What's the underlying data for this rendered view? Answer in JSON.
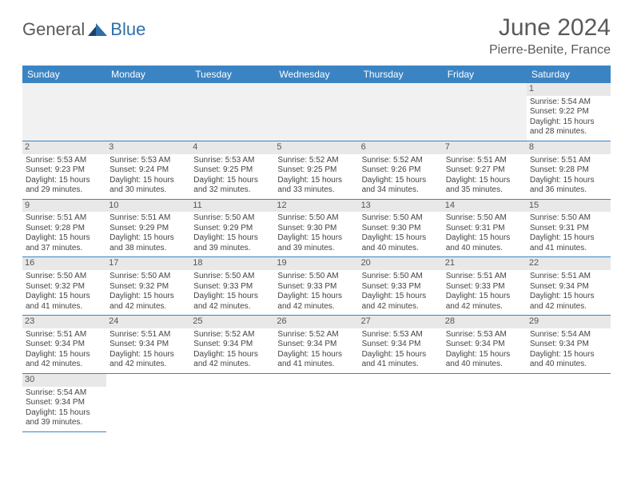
{
  "brand": {
    "left": "General",
    "right": "Blue",
    "left_color": "#6b6b6b",
    "right_color": "#2f6fa8"
  },
  "title": {
    "month": "June 2024",
    "location": "Pierre-Benite, France"
  },
  "colors": {
    "header_bg": "#3b84c4",
    "header_fg": "#ffffff",
    "row_border": "#3b84c4",
    "daynum_bg": "#e8e8e8",
    "empty_bg": "#f1f1f1",
    "text": "#444444"
  },
  "weekdays": [
    "Sunday",
    "Monday",
    "Tuesday",
    "Wednesday",
    "Thursday",
    "Friday",
    "Saturday"
  ],
  "grid": [
    [
      null,
      null,
      null,
      null,
      null,
      null,
      {
        "d": "1",
        "sr": "5:54 AM",
        "ss": "9:22 PM",
        "dh": "15",
        "dm": "28"
      }
    ],
    [
      {
        "d": "2",
        "sr": "5:53 AM",
        "ss": "9:23 PM",
        "dh": "15",
        "dm": "29"
      },
      {
        "d": "3",
        "sr": "5:53 AM",
        "ss": "9:24 PM",
        "dh": "15",
        "dm": "30"
      },
      {
        "d": "4",
        "sr": "5:53 AM",
        "ss": "9:25 PM",
        "dh": "15",
        "dm": "32"
      },
      {
        "d": "5",
        "sr": "5:52 AM",
        "ss": "9:25 PM",
        "dh": "15",
        "dm": "33"
      },
      {
        "d": "6",
        "sr": "5:52 AM",
        "ss": "9:26 PM",
        "dh": "15",
        "dm": "34"
      },
      {
        "d": "7",
        "sr": "5:51 AM",
        "ss": "9:27 PM",
        "dh": "15",
        "dm": "35"
      },
      {
        "d": "8",
        "sr": "5:51 AM",
        "ss": "9:28 PM",
        "dh": "15",
        "dm": "36"
      }
    ],
    [
      {
        "d": "9",
        "sr": "5:51 AM",
        "ss": "9:28 PM",
        "dh": "15",
        "dm": "37"
      },
      {
        "d": "10",
        "sr": "5:51 AM",
        "ss": "9:29 PM",
        "dh": "15",
        "dm": "38"
      },
      {
        "d": "11",
        "sr": "5:50 AM",
        "ss": "9:29 PM",
        "dh": "15",
        "dm": "39"
      },
      {
        "d": "12",
        "sr": "5:50 AM",
        "ss": "9:30 PM",
        "dh": "15",
        "dm": "39"
      },
      {
        "d": "13",
        "sr": "5:50 AM",
        "ss": "9:30 PM",
        "dh": "15",
        "dm": "40"
      },
      {
        "d": "14",
        "sr": "5:50 AM",
        "ss": "9:31 PM",
        "dh": "15",
        "dm": "40"
      },
      {
        "d": "15",
        "sr": "5:50 AM",
        "ss": "9:31 PM",
        "dh": "15",
        "dm": "41"
      }
    ],
    [
      {
        "d": "16",
        "sr": "5:50 AM",
        "ss": "9:32 PM",
        "dh": "15",
        "dm": "41"
      },
      {
        "d": "17",
        "sr": "5:50 AM",
        "ss": "9:32 PM",
        "dh": "15",
        "dm": "42"
      },
      {
        "d": "18",
        "sr": "5:50 AM",
        "ss": "9:33 PM",
        "dh": "15",
        "dm": "42"
      },
      {
        "d": "19",
        "sr": "5:50 AM",
        "ss": "9:33 PM",
        "dh": "15",
        "dm": "42"
      },
      {
        "d": "20",
        "sr": "5:50 AM",
        "ss": "9:33 PM",
        "dh": "15",
        "dm": "42"
      },
      {
        "d": "21",
        "sr": "5:51 AM",
        "ss": "9:33 PM",
        "dh": "15",
        "dm": "42"
      },
      {
        "d": "22",
        "sr": "5:51 AM",
        "ss": "9:34 PM",
        "dh": "15",
        "dm": "42"
      }
    ],
    [
      {
        "d": "23",
        "sr": "5:51 AM",
        "ss": "9:34 PM",
        "dh": "15",
        "dm": "42"
      },
      {
        "d": "24",
        "sr": "5:51 AM",
        "ss": "9:34 PM",
        "dh": "15",
        "dm": "42"
      },
      {
        "d": "25",
        "sr": "5:52 AM",
        "ss": "9:34 PM",
        "dh": "15",
        "dm": "42"
      },
      {
        "d": "26",
        "sr": "5:52 AM",
        "ss": "9:34 PM",
        "dh": "15",
        "dm": "41"
      },
      {
        "d": "27",
        "sr": "5:53 AM",
        "ss": "9:34 PM",
        "dh": "15",
        "dm": "41"
      },
      {
        "d": "28",
        "sr": "5:53 AM",
        "ss": "9:34 PM",
        "dh": "15",
        "dm": "40"
      },
      {
        "d": "29",
        "sr": "5:54 AM",
        "ss": "9:34 PM",
        "dh": "15",
        "dm": "40"
      }
    ],
    [
      {
        "d": "30",
        "sr": "5:54 AM",
        "ss": "9:34 PM",
        "dh": "15",
        "dm": "39"
      },
      null,
      null,
      null,
      null,
      null,
      null
    ]
  ],
  "labels": {
    "sunrise": "Sunrise:",
    "sunset": "Sunset:",
    "daylight_a": "Daylight:",
    "hours": "hours",
    "and": "and",
    "minutes": "minutes."
  }
}
